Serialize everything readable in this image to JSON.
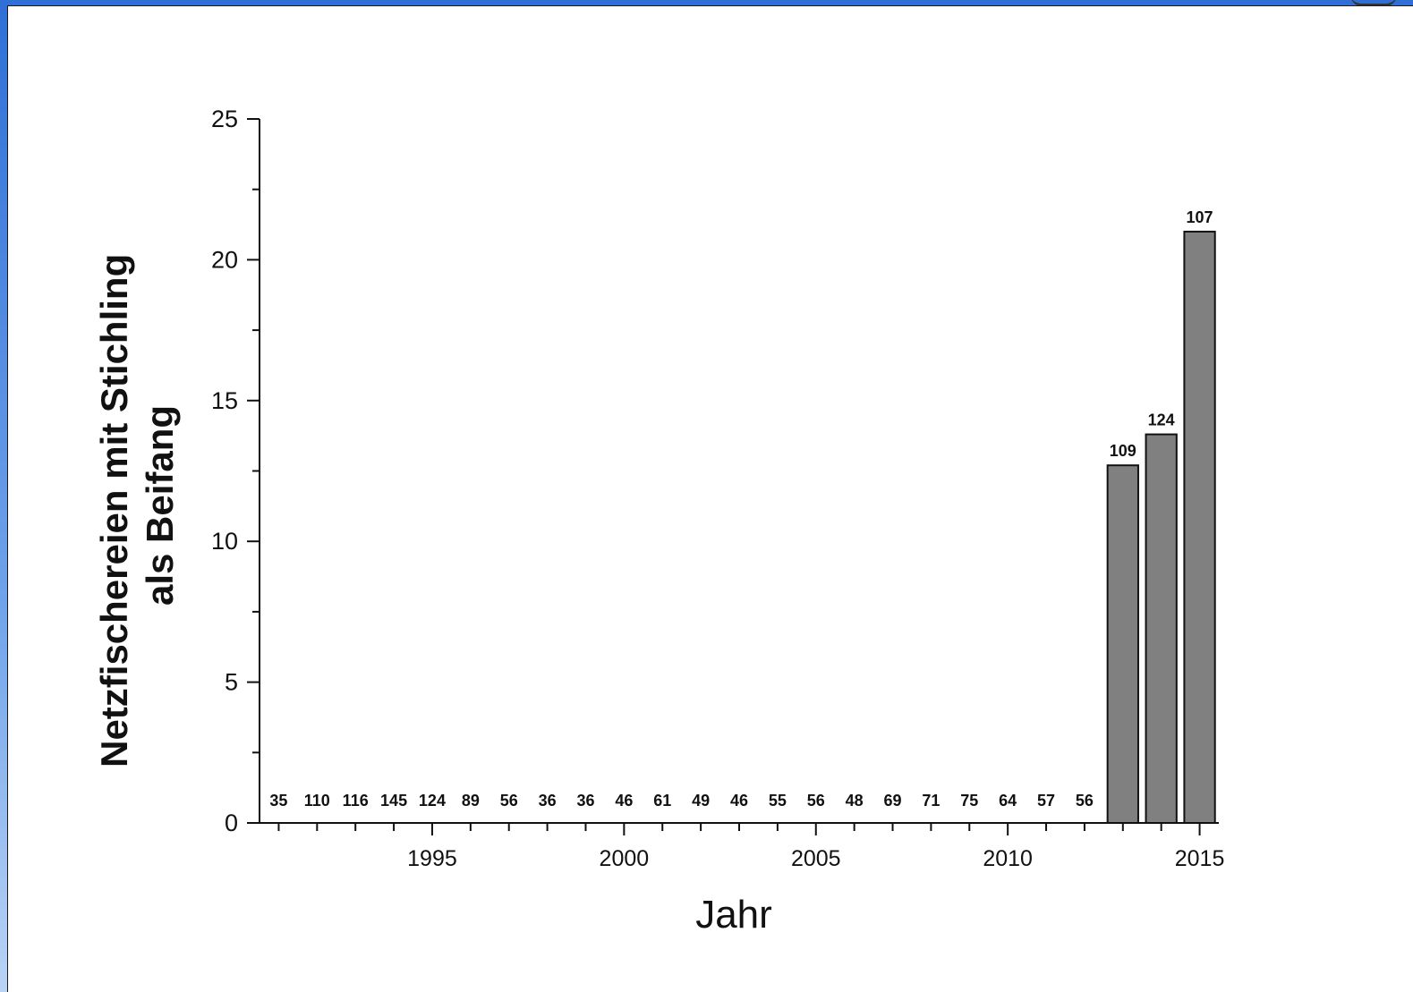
{
  "chart_data": {
    "type": "bar",
    "title": "",
    "xlabel": "Jahr",
    "ylabel_lines": [
      "Netzfischereien mit Stichling",
      "als Beifang"
    ],
    "ylim": [
      0,
      25
    ],
    "y_ticks": [
      0,
      5,
      10,
      15,
      20,
      25
    ],
    "x_range": [
      1990.5,
      2015.5
    ],
    "x_ticks_labeled": [
      1995,
      2000,
      2005,
      2010,
      2015
    ],
    "grid": false,
    "bar_color": "#808080",
    "years": [
      1991,
      1992,
      1993,
      1994,
      1995,
      1996,
      1997,
      1998,
      1999,
      2000,
      2001,
      2002,
      2003,
      2004,
      2005,
      2006,
      2007,
      2008,
      2009,
      2010,
      2011,
      2012,
      2013,
      2014,
      2015
    ],
    "values": [
      0,
      0,
      0,
      0,
      0,
      0,
      0,
      0,
      0,
      0,
      0,
      0,
      0,
      0,
      0,
      0,
      0,
      0,
      0,
      0,
      0,
      0,
      12.7,
      13.8,
      21.0
    ],
    "bar_labels": [
      "35",
      "110",
      "116",
      "145",
      "124",
      "89",
      "56",
      "36",
      "36",
      "46",
      "61",
      "49",
      "46",
      "55",
      "56",
      "48",
      "69",
      "71",
      "75",
      "64",
      "57",
      "56",
      "109",
      "124",
      "107"
    ]
  }
}
